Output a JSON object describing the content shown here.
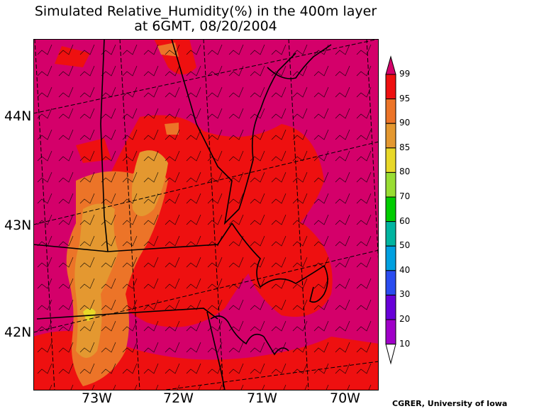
{
  "title": {
    "line1": "Simulated Relative_Humidity(%) in the 400m layer",
    "line2": "at 6GMT, 08/20/2004"
  },
  "map": {
    "lat_labels": [
      "44N",
      "43N",
      "42N"
    ],
    "lon_labels": [
      "73W",
      "72W",
      "71W",
      "70W"
    ],
    "base_color": "#d4006a",
    "field_colors": {
      "95-99": "#ee1010",
      "90-95": "#ec7428",
      "85-90": "#e49830",
      "80-85": "#e8d828"
    }
  },
  "colorbar": {
    "levels": [
      "99",
      "95",
      "90",
      "85",
      "80",
      "70",
      "60",
      "50",
      "40",
      "30",
      "20",
      "10"
    ],
    "colors": [
      "#d4006a",
      "#ee1010",
      "#ec7428",
      "#e49830",
      "#e8d828",
      "#99dd33",
      "#00cc00",
      "#00b4a0",
      "#00a0e0",
      "#2a4cf0",
      "#6800d8",
      "#a000c8",
      "#ffffff"
    ]
  },
  "credit": "CGRER, University of Iowa"
}
